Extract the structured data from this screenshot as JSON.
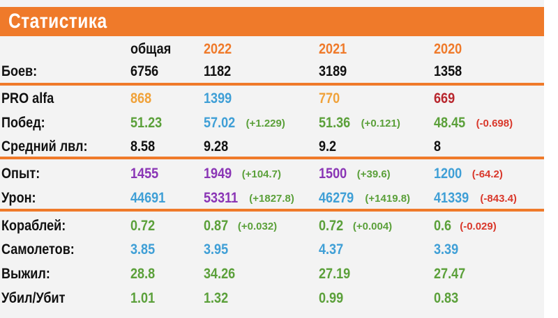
{
  "title": "Статистика",
  "colors": {
    "orange": "#ef7a2a",
    "gold": "#f0a23a",
    "blue": "#3f9fd6",
    "green": "#5ba03a",
    "purple": "#8a35b5",
    "red": "#d9382b",
    "dark_red": "#b8262d",
    "black": "#111111"
  },
  "headers": {
    "c0": {
      "text": "общая",
      "color": "#111111"
    },
    "c1": {
      "text": "2022",
      "color": "#ef7a2a"
    },
    "c2": {
      "text": "2021",
      "color": "#ef7a2a"
    },
    "c3": {
      "text": "2020",
      "color": "#ef7a2a"
    }
  },
  "rows": [
    {
      "label": "Боев:",
      "cells": [
        {
          "value": "6756",
          "color": "#111111"
        },
        {
          "value": "1182",
          "color": "#111111"
        },
        {
          "value": "3189",
          "color": "#111111"
        },
        {
          "value": "1358",
          "color": "#111111"
        }
      ]
    },
    {
      "label": "PRO alfa",
      "cells": [
        {
          "value": "868",
          "color": "#f0a23a"
        },
        {
          "value": "1399",
          "color": "#3f9fd6"
        },
        {
          "value": "770",
          "color": "#f0a23a"
        },
        {
          "value": "669",
          "color": "#b8262d"
        }
      ]
    },
    {
      "label": "Побед:",
      "cells": [
        {
          "value": "51.23",
          "color": "#5ba03a"
        },
        {
          "value": "57.02",
          "color": "#3f9fd6",
          "delta": "(+1.229)",
          "delta_color": "#5ba03a"
        },
        {
          "value": "51.36",
          "color": "#5ba03a",
          "delta": "(+0.121)",
          "delta_color": "#5ba03a"
        },
        {
          "value": "48.45",
          "color": "#5ba03a",
          "delta": "(-0.698)",
          "delta_color": "#d9382b"
        }
      ]
    },
    {
      "label": "Средний лвл:",
      "cells": [
        {
          "value": "8.58",
          "color": "#111111"
        },
        {
          "value": "9.28",
          "color": "#111111"
        },
        {
          "value": "9.2",
          "color": "#111111"
        },
        {
          "value": "8",
          "color": "#111111"
        }
      ]
    },
    {
      "label": "Опыт:",
      "cells": [
        {
          "value": "1455",
          "color": "#8a35b5"
        },
        {
          "value": "1949",
          "color": "#8a35b5",
          "delta": "(+104.7)",
          "delta_color": "#5ba03a"
        },
        {
          "value": "1500",
          "color": "#8a35b5",
          "delta": "(+39.6)",
          "delta_color": "#5ba03a"
        },
        {
          "value": "1200",
          "color": "#3f9fd6",
          "delta": "(-64.2)",
          "delta_color": "#d9382b"
        }
      ]
    },
    {
      "label": "Урон:",
      "cells": [
        {
          "value": "44691",
          "color": "#3f9fd6"
        },
        {
          "value": "53311",
          "color": "#8a35b5",
          "delta": "(+1827.8)",
          "delta_color": "#5ba03a"
        },
        {
          "value": "46279",
          "color": "#3f9fd6",
          "delta": "(+1419.8)",
          "delta_color": "#5ba03a"
        },
        {
          "value": "41339",
          "color": "#3f9fd6",
          "delta": "(-843.4)",
          "delta_color": "#d9382b"
        }
      ]
    },
    {
      "label": "Кораблей:",
      "cells": [
        {
          "value": "0.72",
          "color": "#5ba03a"
        },
        {
          "value": "0.87",
          "color": "#5ba03a",
          "delta": "(+0.032)",
          "delta_color": "#5ba03a"
        },
        {
          "value": "0.72",
          "color": "#5ba03a",
          "delta": "(+0.004)",
          "delta_color": "#5ba03a"
        },
        {
          "value": "0.6",
          "color": "#5ba03a",
          "delta": "(-0.029)",
          "delta_color": "#d9382b"
        }
      ]
    },
    {
      "label": "Самолетов:",
      "cells": [
        {
          "value": "3.85",
          "color": "#3f9fd6"
        },
        {
          "value": "3.95",
          "color": "#3f9fd6"
        },
        {
          "value": "4.37",
          "color": "#3f9fd6"
        },
        {
          "value": "3.39",
          "color": "#3f9fd6"
        }
      ]
    },
    {
      "label": "Выжил:",
      "cells": [
        {
          "value": "28.8",
          "color": "#5ba03a"
        },
        {
          "value": "34.26",
          "color": "#5ba03a"
        },
        {
          "value": "27.19",
          "color": "#5ba03a"
        },
        {
          "value": "27.47",
          "color": "#5ba03a"
        }
      ]
    },
    {
      "label": "Убил/Убит",
      "cells": [
        {
          "value": "1.01",
          "color": "#5ba03a"
        },
        {
          "value": "1.32",
          "color": "#5ba03a"
        },
        {
          "value": "0.99",
          "color": "#5ba03a"
        },
        {
          "value": "0.83",
          "color": "#5ba03a"
        }
      ]
    }
  ]
}
